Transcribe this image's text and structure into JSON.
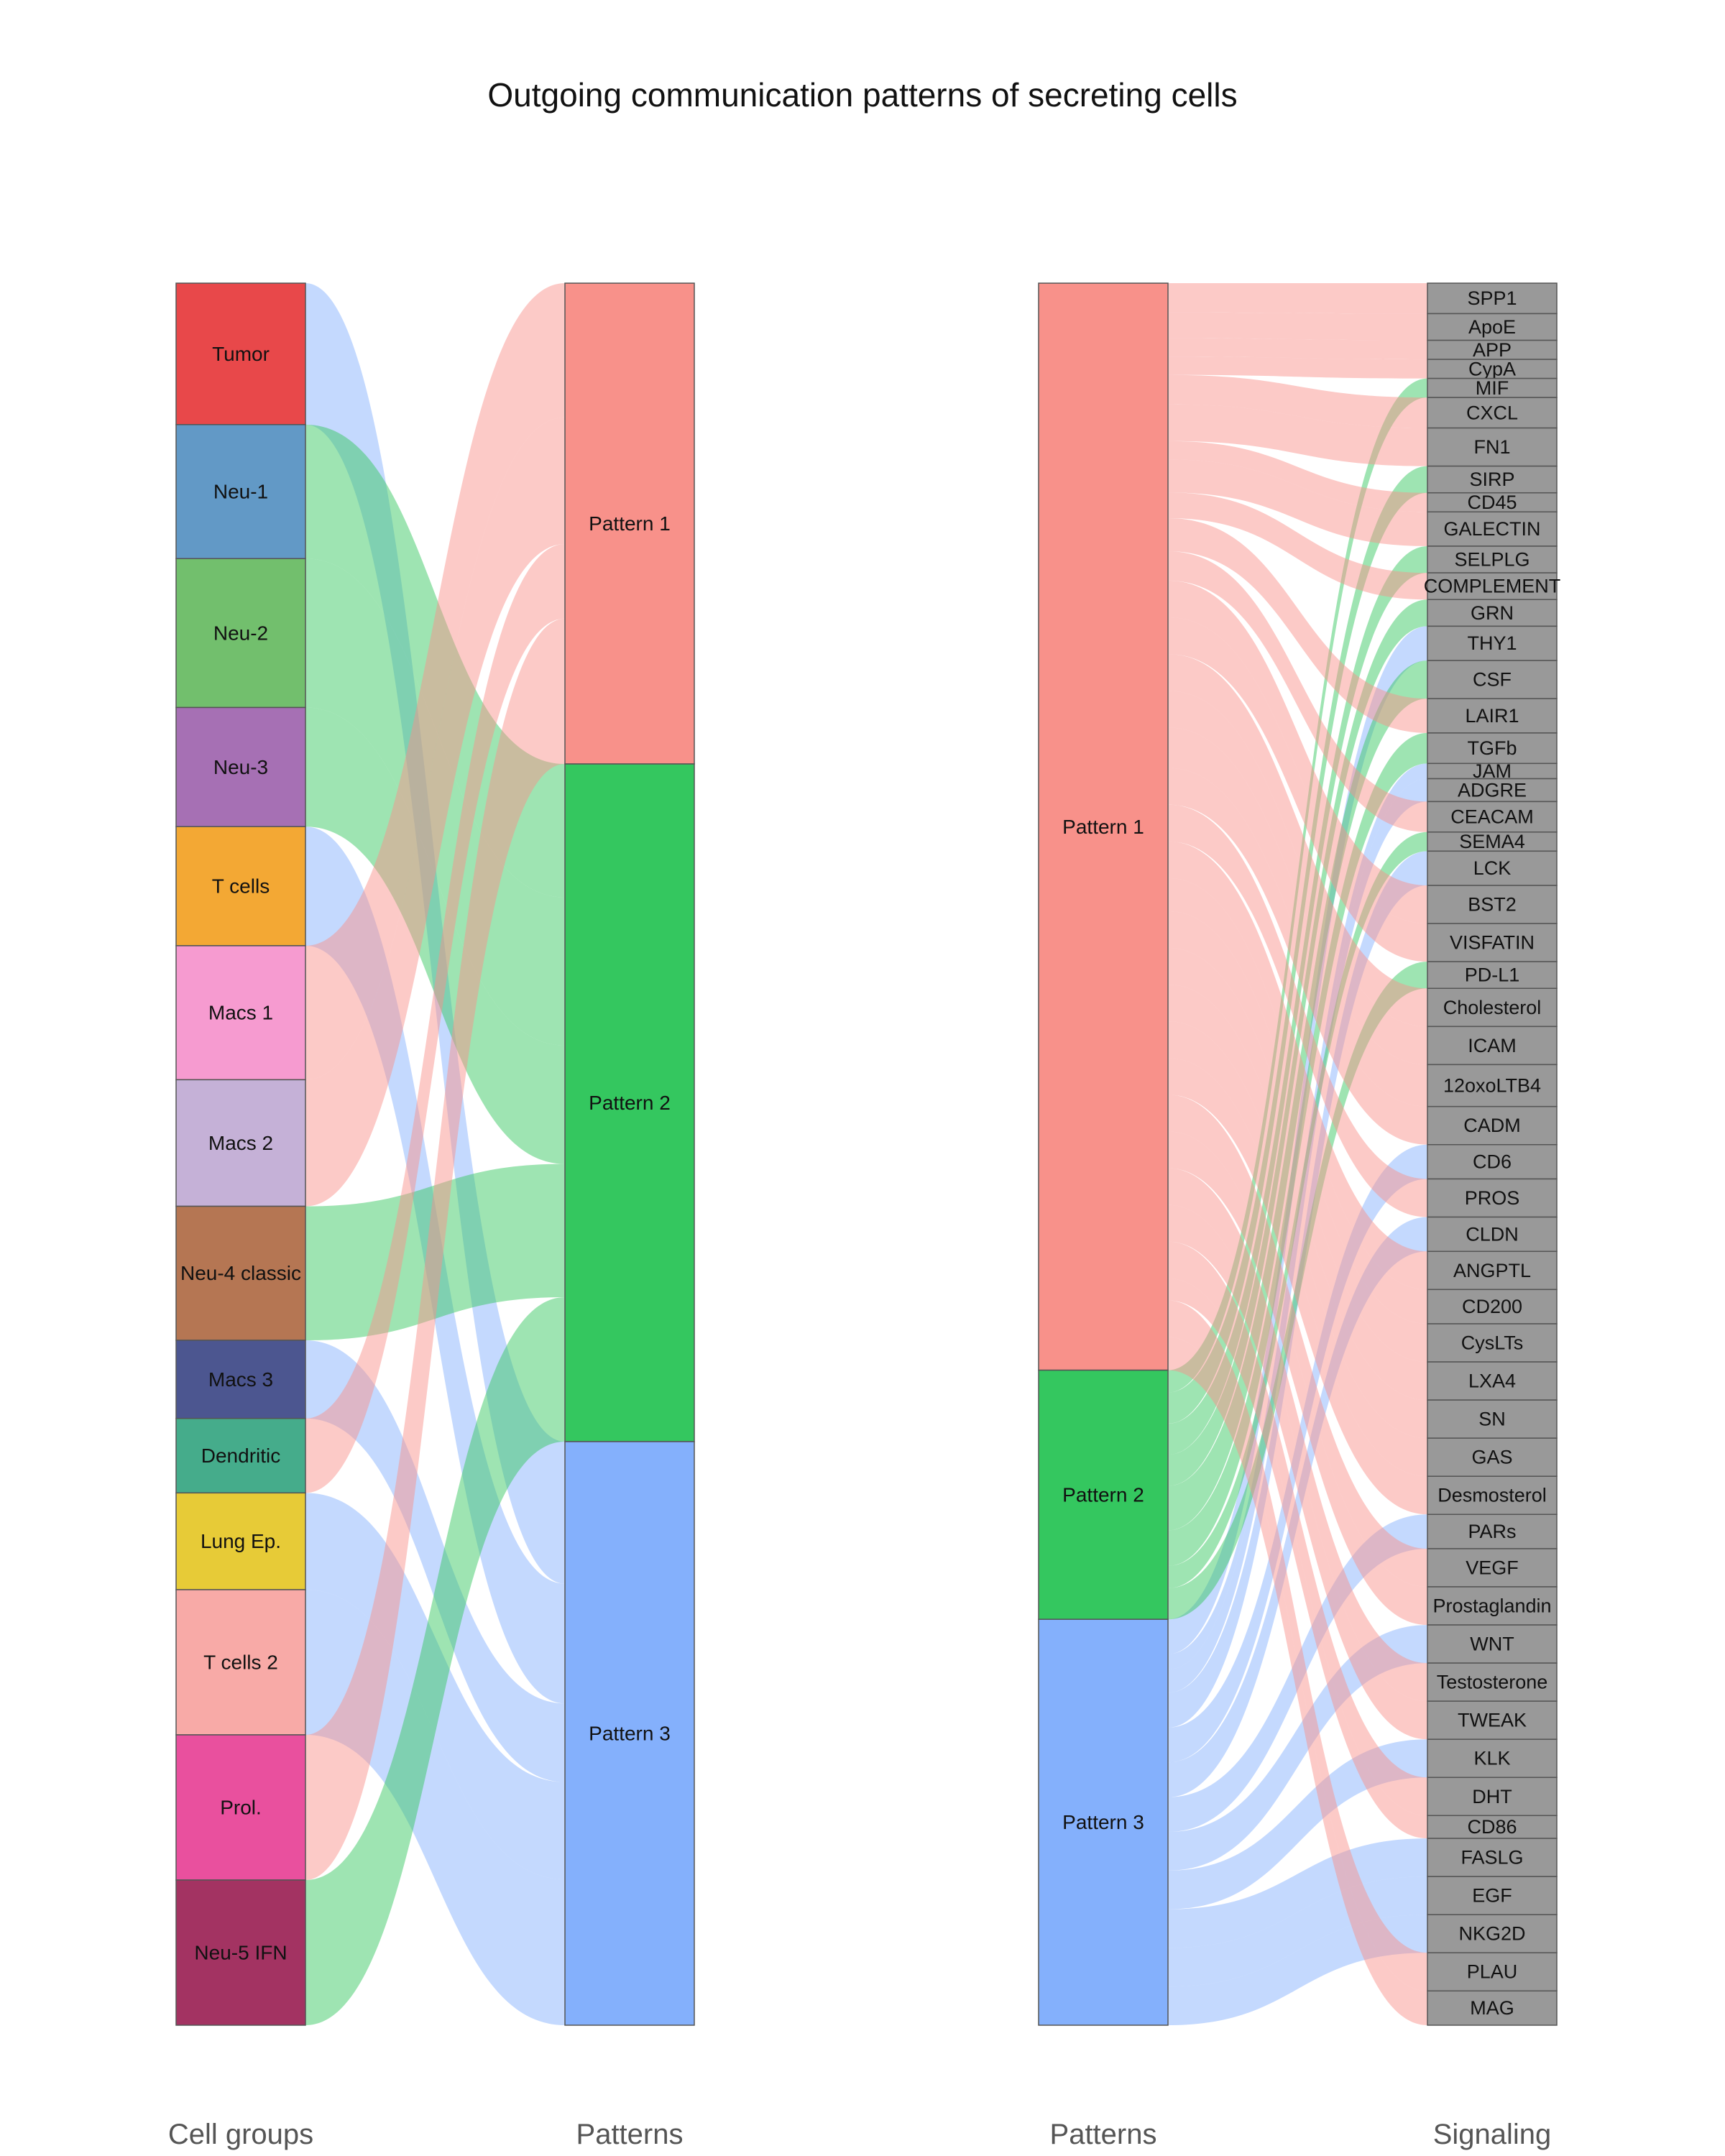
{
  "title": "Outgoing communication patterns of secreting cells",
  "columns": {
    "cell_groups": "Cell groups",
    "patterns_left": "Patterns",
    "patterns_right": "Patterns",
    "signaling": "Signaling"
  },
  "colors": {
    "pattern_1": "#f8918a",
    "pattern_2": "#34c75f",
    "pattern_3": "#84b0fc",
    "signaling_node": "#999999"
  },
  "cell_groups": [
    {
      "name": "Tumor",
      "color": "#e8484a",
      "pattern": "Pattern 3"
    },
    {
      "name": "Neu-1",
      "color": "#6299c6",
      "pattern": "Pattern 2"
    },
    {
      "name": "Neu-2",
      "color": "#72bf6d",
      "pattern": "Pattern 2"
    },
    {
      "name": "Neu-3",
      "color": "#a670b4",
      "pattern": "Pattern 2"
    },
    {
      "name": "T cells",
      "color": "#f3a834",
      "pattern": "Pattern 3"
    },
    {
      "name": "Macs 1",
      "color": "#f69bd0",
      "pattern": "Pattern 1"
    },
    {
      "name": "Macs 2",
      "color": "#c5b1d7",
      "pattern": "Pattern 1"
    },
    {
      "name": "Neu-4 classic",
      "color": "#b57653",
      "pattern": "Pattern 2"
    },
    {
      "name": "Macs 3",
      "color": "#4c5690",
      "pattern": "Pattern 3"
    },
    {
      "name": "Dendritic",
      "color": "#45ac8b",
      "pattern": "Pattern 1"
    },
    {
      "name": "Lung Ep.",
      "color": "#e7cb37",
      "pattern": "Pattern 3"
    },
    {
      "name": "T cells 2",
      "color": "#f8aaa7",
      "pattern": "Pattern 3"
    },
    {
      "name": "Prol.",
      "color": "#e9509e",
      "pattern": "Pattern 1"
    },
    {
      "name": "Neu-5 IFN",
      "color": "#a33362",
      "pattern": "Pattern 2"
    }
  ],
  "patterns": [
    "Pattern 1",
    "Pattern 2",
    "Pattern 3"
  ],
  "signaling": [
    {
      "name": "SPP1",
      "pattern": "Pattern 1"
    },
    {
      "name": "ApoE",
      "pattern": "Pattern 1"
    },
    {
      "name": "APP",
      "pattern": "Pattern 1"
    },
    {
      "name": "CypA",
      "pattern": "Pattern 1"
    },
    {
      "name": "MIF",
      "pattern": "Pattern 2"
    },
    {
      "name": "CXCL",
      "pattern": "Pattern 1"
    },
    {
      "name": "FN1",
      "pattern": "Pattern 1"
    },
    {
      "name": "SIRP",
      "pattern": "Pattern 2"
    },
    {
      "name": "CD45",
      "pattern": "Pattern 1"
    },
    {
      "name": "GALECTIN",
      "pattern": "Pattern 1"
    },
    {
      "name": "SELPLG",
      "pattern": "Pattern 2"
    },
    {
      "name": "COMPLEMENT",
      "pattern": "Pattern 1"
    },
    {
      "name": "GRN",
      "pattern": "Pattern 2"
    },
    {
      "name": "THY1",
      "pattern": "Pattern 3"
    },
    {
      "name": "CSF",
      "pattern": "Pattern 2"
    },
    {
      "name": "LAIR1",
      "pattern": "Pattern 1"
    },
    {
      "name": "TGFb",
      "pattern": "Pattern 2"
    },
    {
      "name": "JAM",
      "pattern": "Pattern 3"
    },
    {
      "name": "ADGRE",
      "pattern": "Pattern 3"
    },
    {
      "name": "CEACAM",
      "pattern": "Pattern 1"
    },
    {
      "name": "SEMA4",
      "pattern": "Pattern 2"
    },
    {
      "name": "LCK",
      "pattern": "Pattern 3"
    },
    {
      "name": "BST2",
      "pattern": "Pattern 1"
    },
    {
      "name": "VISFATIN",
      "pattern": "Pattern 1"
    },
    {
      "name": "PD-L1",
      "pattern": "Pattern 2"
    },
    {
      "name": "Cholesterol",
      "pattern": "Pattern 1"
    },
    {
      "name": "ICAM",
      "pattern": "Pattern 1"
    },
    {
      "name": "12oxoLTB4",
      "pattern": "Pattern 1"
    },
    {
      "name": "CADM",
      "pattern": "Pattern 1"
    },
    {
      "name": "CD6",
      "pattern": "Pattern 3"
    },
    {
      "name": "PROS",
      "pattern": "Pattern 1"
    },
    {
      "name": "CLDN",
      "pattern": "Pattern 3"
    },
    {
      "name": "ANGPTL",
      "pattern": "Pattern 1"
    },
    {
      "name": "CD200",
      "pattern": "Pattern 1"
    },
    {
      "name": "CysLTs",
      "pattern": "Pattern 1"
    },
    {
      "name": "LXA4",
      "pattern": "Pattern 1"
    },
    {
      "name": "SN",
      "pattern": "Pattern 1"
    },
    {
      "name": "GAS",
      "pattern": "Pattern 1"
    },
    {
      "name": "Desmosterol",
      "pattern": "Pattern 1"
    },
    {
      "name": "PARs",
      "pattern": "Pattern 3"
    },
    {
      "name": "VEGF",
      "pattern": "Pattern 1"
    },
    {
      "name": "Prostaglandin",
      "pattern": "Pattern 1"
    },
    {
      "name": "WNT",
      "pattern": "Pattern 3"
    },
    {
      "name": "Testosterone",
      "pattern": "Pattern 1"
    },
    {
      "name": "TWEAK",
      "pattern": "Pattern 1"
    },
    {
      "name": "KLK",
      "pattern": "Pattern 3"
    },
    {
      "name": "DHT",
      "pattern": "Pattern 1"
    },
    {
      "name": "CD86",
      "pattern": "Pattern 1"
    },
    {
      "name": "FASLG",
      "pattern": "Pattern 3"
    },
    {
      "name": "EGF",
      "pattern": "Pattern 3"
    },
    {
      "name": "NKG2D",
      "pattern": "Pattern 3"
    },
    {
      "name": "PLAU",
      "pattern": "Pattern 1"
    },
    {
      "name": "MAG",
      "pattern": "Pattern 1"
    }
  ]
}
